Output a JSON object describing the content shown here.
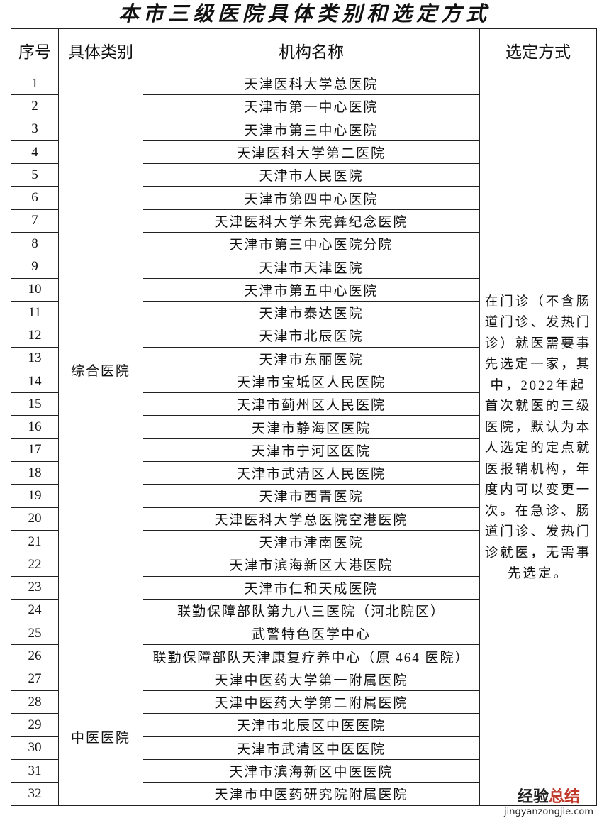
{
  "title": "本市三级医院具体类别和选定方式",
  "headers": {
    "no": "序号",
    "category": "具体类别",
    "name": "机构名称",
    "method": "选定方式"
  },
  "groups": [
    {
      "category": "综合医院",
      "items": [
        "天津医科大学总医院",
        "天津市第一中心医院",
        "天津市第三中心医院",
        "天津医科大学第二医院",
        "天津市人民医院",
        "天津市第四中心医院",
        "天津医科大学朱宪彝纪念医院",
        "天津市第三中心医院分院",
        "天津市天津医院",
        "天津市第五中心医院",
        "天津市泰达医院",
        "天津市北辰医院",
        "天津市东丽医院",
        "天津市宝坻区人民医院",
        "天津市蓟州区人民医院",
        "天津市静海区医院",
        "天津市宁河区医院",
        "天津市武清区人民医院",
        "天津市西青医院",
        "天津医科大学总医院空港医院",
        "天津市津南医院",
        "天津市滨海新区大港医院",
        "天津市仁和天成医院",
        "联勤保障部队第九八三医院（河北院区）",
        "武警特色医学中心",
        "联勤保障部队天津康复疗养中心（原 464 医院）"
      ]
    },
    {
      "category": "中医医院",
      "items": [
        "天津中医药大学第一附属医院",
        "天津中医药大学第二附属医院",
        "天津市北辰区中医医院",
        "天津市武清区中医医院",
        "天津市滨海新区中医医院",
        "天津市中医药研究院附属医院"
      ]
    }
  ],
  "method": "在门诊（不含肠道门诊、发热门诊）就医需要事先选定一家，其中，2022年起首次就医的三级医院，默认为本人选定的定点就医报销机构，年度内可以变更一次。在急诊、肠道门诊、发热门诊就医，无需事先选定。",
  "watermark": {
    "brand_dark": "经验",
    "brand_red": "总结",
    "url": "jingyanzongjie.com"
  }
}
